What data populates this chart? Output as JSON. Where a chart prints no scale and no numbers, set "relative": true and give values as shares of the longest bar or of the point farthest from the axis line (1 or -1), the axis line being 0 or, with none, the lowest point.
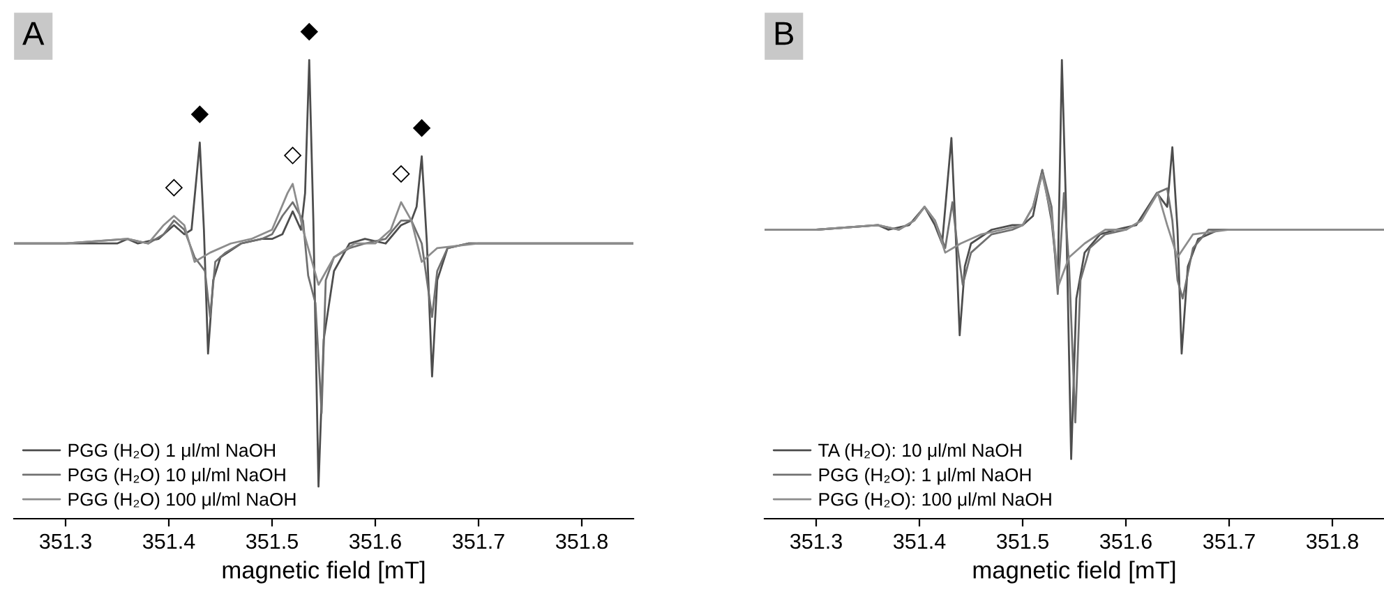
{
  "chart_data": [
    {
      "type": "line",
      "title": "A",
      "xlabel": "magnetic field [mT]",
      "relative": true,
      "xlim": [
        351.25,
        351.85
      ],
      "xticks": [
        351.3,
        351.4,
        351.5,
        351.6,
        351.7,
        351.8
      ],
      "tick_labels": "x",
      "legend": "bottom left",
      "series": [
        {
          "name": "PGG (H₂O) 1 μl/ml NaOH",
          "color": "#4d4d4d",
          "x": [
            351.25,
            351.3,
            351.35,
            351.36,
            351.37,
            351.39,
            351.405,
            351.415,
            351.422,
            351.43,
            351.434,
            351.438,
            351.443,
            351.45,
            351.47,
            351.49,
            351.5,
            351.51,
            351.52,
            351.528,
            351.532,
            351.536,
            351.54,
            351.545,
            351.55,
            351.56,
            351.575,
            351.59,
            351.61,
            351.625,
            351.635,
            351.64,
            351.645,
            351.65,
            351.655,
            351.66,
            351.67,
            351.69,
            351.75,
            351.8,
            351.85
          ],
          "values": [
            0.6,
            0.6,
            0.6,
            0.61,
            0.6,
            0.61,
            0.64,
            0.62,
            0.63,
            0.82,
            0.63,
            0.36,
            0.52,
            0.57,
            0.6,
            0.61,
            0.61,
            0.62,
            0.67,
            0.63,
            0.71,
            1,
            0.65,
            0.07,
            0.39,
            0.54,
            0.6,
            0.61,
            0.6,
            0.64,
            0.65,
            0.68,
            0.79,
            0.6,
            0.31,
            0.52,
            0.59,
            0.6,
            0.6,
            0.6,
            0.6
          ]
        },
        {
          "name": "PGG (H₂O) 10 μl/ml NaOH",
          "color": "#707070",
          "x": [
            351.25,
            351.3,
            351.36,
            351.38,
            351.395,
            351.405,
            351.415,
            351.425,
            351.435,
            351.44,
            351.445,
            351.455,
            351.47,
            351.49,
            351.5,
            351.51,
            351.52,
            351.53,
            351.535,
            351.542,
            351.548,
            351.552,
            351.56,
            351.575,
            351.59,
            351.61,
            351.625,
            351.635,
            351.645,
            351.655,
            351.66,
            351.67,
            351.69,
            351.75,
            351.85
          ],
          "values": [
            0.6,
            0.6,
            0.61,
            0.6,
            0.62,
            0.65,
            0.63,
            0.57,
            0.54,
            0.44,
            0.56,
            0.58,
            0.6,
            0.61,
            0.62,
            0.66,
            0.69,
            0.65,
            0.53,
            0.47,
            0.23,
            0.52,
            0.57,
            0.59,
            0.6,
            0.61,
            0.65,
            0.65,
            0.6,
            0.44,
            0.54,
            0.59,
            0.6,
            0.6,
            0.6
          ]
        },
        {
          "name": "PGG (H₂O) 100 μl/ml NaOH",
          "color": "#8c8c8c",
          "x": [
            351.25,
            351.3,
            351.36,
            351.38,
            351.395,
            351.405,
            351.415,
            351.425,
            351.44,
            351.46,
            351.48,
            351.5,
            351.515,
            351.52,
            351.53,
            351.545,
            351.56,
            351.58,
            351.6,
            351.615,
            351.625,
            351.635,
            351.645,
            351.66,
            351.7,
            351.85
          ],
          "values": [
            0.6,
            0.6,
            0.61,
            0.6,
            0.64,
            0.66,
            0.64,
            0.56,
            0.58,
            0.6,
            0.61,
            0.63,
            0.71,
            0.73,
            0.63,
            0.51,
            0.57,
            0.6,
            0.6,
            0.63,
            0.69,
            0.65,
            0.56,
            0.59,
            0.6,
            0.6
          ]
        }
      ],
      "annotations": [
        {
          "text": "◇",
          "x": 351.405,
          "y": 0.66
        },
        {
          "text": "◆",
          "x": 351.43,
          "y": 0.82
        },
        {
          "text": "◇",
          "x": 351.52,
          "y": 0.73
        },
        {
          "text": "◆",
          "x": 351.536,
          "y": 1
        },
        {
          "text": "◇",
          "x": 351.625,
          "y": 0.69
        },
        {
          "text": "◆",
          "x": 351.645,
          "y": 0.79
        }
      ]
    },
    {
      "type": "line",
      "title": "B",
      "xlabel": "magnetic field [mT]",
      "relative": true,
      "xlim": [
        351.25,
        351.85
      ],
      "xticks": [
        351.3,
        351.4,
        351.5,
        351.6,
        351.7,
        351.8
      ],
      "tick_labels": "x",
      "legend": "bottom left",
      "series": [
        {
          "name": "TA (H₂O): 10 μl/ml NaOH",
          "color": "#4d4d4d",
          "x": [
            351.25,
            351.3,
            351.36,
            351.37,
            351.39,
            351.405,
            351.415,
            351.422,
            351.431,
            351.435,
            351.439,
            351.444,
            351.45,
            351.47,
            351.49,
            351.5,
            351.51,
            351.519,
            351.528,
            351.534,
            351.538,
            351.542,
            351.547,
            351.552,
            351.56,
            351.575,
            351.59,
            351.61,
            351.63,
            351.64,
            351.645,
            351.65,
            351.654,
            351.66,
            351.67,
            351.69,
            351.75,
            351.85
          ],
          "values": [
            0.63,
            0.63,
            0.64,
            0.63,
            0.64,
            0.68,
            0.64,
            0.6,
            0.83,
            0.63,
            0.4,
            0.55,
            0.6,
            0.63,
            0.64,
            0.64,
            0.66,
            0.76,
            0.65,
            0.52,
            1,
            0.68,
            0.13,
            0.48,
            0.58,
            0.62,
            0.63,
            0.64,
            0.71,
            0.68,
            0.81,
            0.63,
            0.36,
            0.55,
            0.61,
            0.63,
            0.63,
            0.63
          ]
        },
        {
          "name": "PGG (H₂O): 1 μl/ml NaOH",
          "color": "#707070",
          "x": [
            351.25,
            351.3,
            351.36,
            351.38,
            351.395,
            351.405,
            351.415,
            351.425,
            351.432,
            351.437,
            351.442,
            351.45,
            351.47,
            351.49,
            351.5,
            351.51,
            351.519,
            351.528,
            351.534,
            351.54,
            351.545,
            351.551,
            351.556,
            351.565,
            351.58,
            351.6,
            351.615,
            351.63,
            351.64,
            351.645,
            351.65,
            351.655,
            351.665,
            351.68,
            351.75,
            351.85
          ],
          "values": [
            0.63,
            0.63,
            0.64,
            0.63,
            0.65,
            0.68,
            0.65,
            0.59,
            0.69,
            0.59,
            0.51,
            0.58,
            0.62,
            0.63,
            0.64,
            0.68,
            0.76,
            0.68,
            0.49,
            0.71,
            0.55,
            0.21,
            0.52,
            0.59,
            0.62,
            0.63,
            0.65,
            0.71,
            0.72,
            0.65,
            0.52,
            0.48,
            0.59,
            0.63,
            0.63,
            0.63
          ]
        },
        {
          "name": "PGG (H₂O): 100 μl/ml NaOH",
          "color": "#8c8c8c",
          "x": [
            351.25,
            351.3,
            351.36,
            351.38,
            351.395,
            351.405,
            351.415,
            351.425,
            351.44,
            351.46,
            351.48,
            351.5,
            351.51,
            351.519,
            351.528,
            351.535,
            351.545,
            351.56,
            351.58,
            351.6,
            351.615,
            351.631,
            351.64,
            351.65,
            351.665,
            351.7,
            351.85
          ],
          "values": [
            0.63,
            0.63,
            0.64,
            0.63,
            0.65,
            0.68,
            0.65,
            0.58,
            0.6,
            0.62,
            0.63,
            0.64,
            0.68,
            0.75,
            0.66,
            0.51,
            0.57,
            0.6,
            0.63,
            0.63,
            0.65,
            0.71,
            0.64,
            0.57,
            0.62,
            0.63,
            0.63
          ]
        }
      ]
    }
  ]
}
